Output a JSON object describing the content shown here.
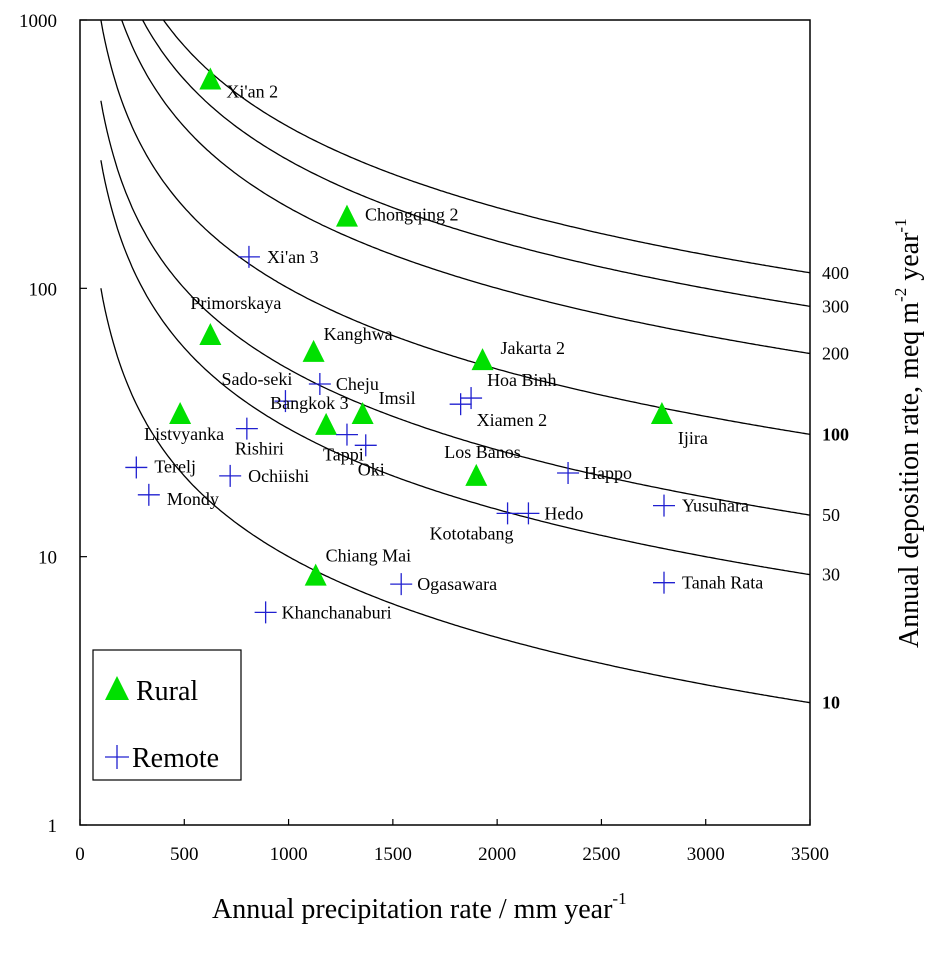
{
  "chart_data": {
    "type": "scatter",
    "xlabel": "Annual precipitation rate  /  mm year",
    "xlabel_sup": "-1",
    "ylabel_right": "Annual deposition rate, meq m",
    "ylabel_sup1": "-2",
    "ylabel_mid": " year",
    "ylabel_sup2": "-1",
    "x_range": [
      0,
      3500
    ],
    "y_range": [
      1,
      1000
    ],
    "y_scale": "log",
    "x_ticks": [
      "0",
      "500",
      "1000",
      "1500",
      "2000",
      "2500",
      "3000",
      "3500"
    ],
    "y_ticks": [
      "1",
      "10",
      "100",
      "1000"
    ],
    "legend_position": "bottom-left",
    "curve_color": "#000000",
    "deposition_curves": [
      {
        "label": "10",
        "value": 10,
        "bold": true
      },
      {
        "label": "30",
        "value": 30,
        "bold": false
      },
      {
        "label": "50",
        "value": 50,
        "bold": false
      },
      {
        "label": "100",
        "value": 100,
        "bold": true
      },
      {
        "label": "200",
        "value": 200,
        "bold": false
      },
      {
        "label": "300",
        "value": 300,
        "bold": false
      },
      {
        "label": "400",
        "value": 400,
        "bold": false
      }
    ],
    "series": [
      {
        "name": "Rural",
        "marker": "triangle",
        "color": "#00e000",
        "points": [
          {
            "label": "Xi'an 2",
            "x": 625,
            "y": 600
          },
          {
            "label": "Chongqing 2",
            "x": 1280,
            "y": 185
          },
          {
            "label": "Primorskaya",
            "x": 625,
            "y": 67
          },
          {
            "label": "Kanghwa",
            "x": 1120,
            "y": 58
          },
          {
            "label": "Jakarta 2",
            "x": 1930,
            "y": 54
          },
          {
            "label": "Listvyanka",
            "x": 480,
            "y": 34
          },
          {
            "label": "Bangkok 3",
            "x": 1180,
            "y": 31
          },
          {
            "label": "Imsil",
            "x": 1355,
            "y": 34
          },
          {
            "label": "Ijira",
            "x": 2790,
            "y": 34
          },
          {
            "label": "Los Banos",
            "x": 1900,
            "y": 20
          },
          {
            "label": "Chiang Mai",
            "x": 1130,
            "y": 8.5
          }
        ]
      },
      {
        "name": "Remote",
        "marker": "plus",
        "color": "#2020d0",
        "points": [
          {
            "label": "Xi'an 3",
            "x": 810,
            "y": 131
          },
          {
            "label": "Sado-seki",
            "x": 985,
            "y": 38
          },
          {
            "label": "Cheju",
            "x": 1150,
            "y": 44
          },
          {
            "label": "Hoa Binh",
            "x": 1875,
            "y": 39
          },
          {
            "label": "Xiamen 2",
            "x": 1825,
            "y": 37
          },
          {
            "label": "Rishiri",
            "x": 800,
            "y": 30
          },
          {
            "label": "Tappi",
            "x": 1280,
            "y": 28.5
          },
          {
            "label": "Oki",
            "x": 1370,
            "y": 26
          },
          {
            "label": "Terelj",
            "x": 270,
            "y": 21.5
          },
          {
            "label": "Mondy",
            "x": 330,
            "y": 17
          },
          {
            "label": "Ochiishi",
            "x": 720,
            "y": 20
          },
          {
            "label": "Happo",
            "x": 2340,
            "y": 20.5
          },
          {
            "label": "Kototabang",
            "x": 2050,
            "y": 14.5
          },
          {
            "label": "Hedo",
            "x": 2150,
            "y": 14.5
          },
          {
            "label": "Yusuhara",
            "x": 2800,
            "y": 15.5
          },
          {
            "label": "Ogasawara",
            "x": 1540,
            "y": 7.9
          },
          {
            "label": "Tanah Rata",
            "x": 2800,
            "y": 8
          },
          {
            "label": "Khanchanaburi",
            "x": 890,
            "y": 6.2
          }
        ]
      }
    ],
    "legend": {
      "rural_label": "Rural",
      "remote_label": "Remote"
    }
  }
}
